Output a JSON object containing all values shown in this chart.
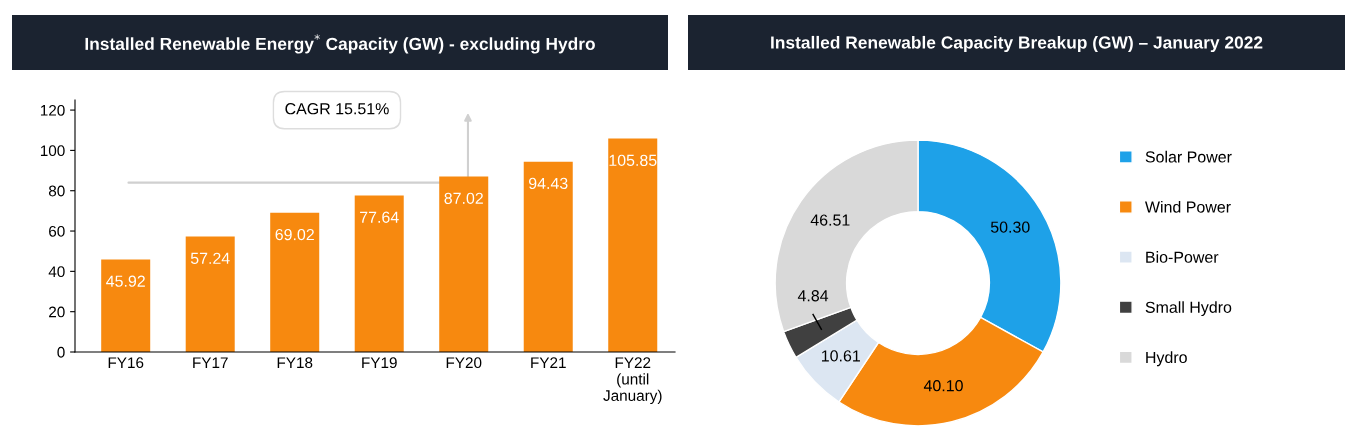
{
  "chart_data": [
    {
      "type": "bar",
      "title": "Installed Renewable Energy$^{*}$ Capacity (GW) - excluding Hydro",
      "categories": [
        "FY16",
        "FY17",
        "FY18",
        "FY19",
        "FY20",
        "FY21",
        "FY22\n(until\nJanuary)"
      ],
      "values": [
        45.92,
        57.24,
        69.02,
        77.64,
        87.02,
        94.43,
        105.85
      ],
      "color": "#f7890f",
      "ylim": [
        0,
        125
      ],
      "yticks": [
        0,
        20,
        40,
        60,
        80,
        100,
        120
      ],
      "grid": false,
      "data_labels": true,
      "legend": false,
      "annotations": [
        "CAGR 15.51%"
      ]
    },
    {
      "type": "donut",
      "title": "Installed Renewable Capacity Breakup (GW) – January 2022",
      "categories": [
        "Solar Power",
        "Wind Power",
        "Bio-Power",
        "Small Hydro",
        "Hydro"
      ],
      "values": [
        50.3,
        40.1,
        10.61,
        4.84,
        46.51
      ],
      "colors": [
        "#1ea1e8",
        "#f7890f",
        "#dce6f2",
        "#404040",
        "#d9d9d9"
      ],
      "value_labels": [
        "50.30",
        "40.10",
        "10.61",
        "4.84",
        "46.51"
      ],
      "legend": "right"
    }
  ]
}
